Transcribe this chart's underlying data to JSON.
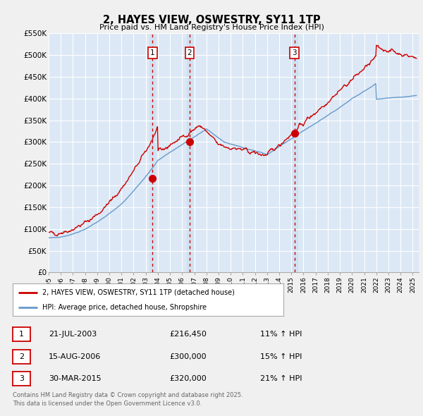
{
  "title": "2, HAYES VIEW, OSWESTRY, SY11 1TP",
  "subtitle": "Price paid vs. HM Land Registry's House Price Index (HPI)",
  "x_start": 1995.0,
  "x_end": 2025.5,
  "y_min": 0,
  "y_max": 550000,
  "y_ticks": [
    0,
    50000,
    100000,
    150000,
    200000,
    250000,
    300000,
    350000,
    400000,
    450000,
    500000,
    550000
  ],
  "y_tick_labels": [
    "£0",
    "£50K",
    "£100K",
    "£150K",
    "£200K",
    "£250K",
    "£300K",
    "£350K",
    "£400K",
    "£450K",
    "£500K",
    "£550K"
  ],
  "x_ticks": [
    1995,
    1996,
    1997,
    1998,
    1999,
    2000,
    2001,
    2002,
    2003,
    2004,
    2005,
    2006,
    2007,
    2008,
    2009,
    2010,
    2011,
    2012,
    2013,
    2014,
    2015,
    2016,
    2017,
    2018,
    2019,
    2020,
    2021,
    2022,
    2023,
    2024,
    2025
  ],
  "sales_color": "#cc0000",
  "hpi_color": "#6699cc",
  "background_color": "#f0f0f0",
  "plot_bg_color": "#dce8f5",
  "grid_color": "#ffffff",
  "vline_color": "#cc0000",
  "shade_color": "#c8ddf0",
  "sale_points": [
    {
      "year": 2003.55,
      "value": 216450,
      "label": "1"
    },
    {
      "year": 2006.62,
      "value": 300000,
      "label": "2"
    },
    {
      "year": 2015.25,
      "value": 320000,
      "label": "3"
    }
  ],
  "legend_entries": [
    {
      "label": "2, HAYES VIEW, OSWESTRY, SY11 1TP (detached house)",
      "color": "#cc0000"
    },
    {
      "label": "HPI: Average price, detached house, Shropshire",
      "color": "#6699cc"
    }
  ],
  "table_rows": [
    {
      "num": "1",
      "date": "21-JUL-2003",
      "price": "£216,450",
      "change": "11% ↑ HPI"
    },
    {
      "num": "2",
      "date": "15-AUG-2006",
      "price": "£300,000",
      "change": "15% ↑ HPI"
    },
    {
      "num": "3",
      "date": "30-MAR-2015",
      "price": "£320,000",
      "change": "21% ↑ HPI"
    }
  ],
  "footnote": "Contains HM Land Registry data © Crown copyright and database right 2025.\nThis data is licensed under the Open Government Licence v3.0."
}
